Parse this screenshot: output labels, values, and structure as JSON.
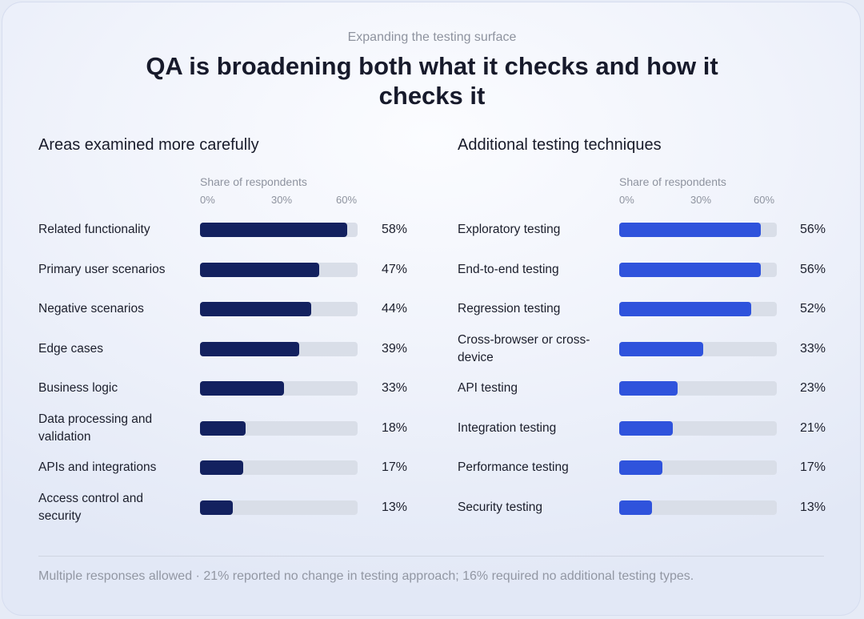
{
  "header": {
    "subtitle": "Expanding the testing surface",
    "title": "QA is broadening both what it checks and how it checks it"
  },
  "colors": {
    "left_bar": "#13215f",
    "right_bar": "#2f53dc",
    "track": "#d9dee8"
  },
  "chart_data": [
    {
      "type": "bar",
      "orientation": "horizontal",
      "title": "Areas examined more carefully",
      "axis_label": "Share of respondents",
      "ticks": [
        "0%",
        "30%",
        "60%"
      ],
      "xlim": [
        0,
        60
      ],
      "unit": "%",
      "categories": [
        "Related functionality",
        "Primary user scenarios",
        "Negative scenarios",
        "Edge cases",
        "Business logic",
        "Data processing and validation",
        "APIs and integrations",
        "Access control and security"
      ],
      "values": [
        58,
        47,
        44,
        39,
        33,
        18,
        17,
        13
      ],
      "value_labels": [
        "58%",
        "47%",
        "44%",
        "39%",
        "33%",
        "18%",
        "17%",
        "13%"
      ]
    },
    {
      "type": "bar",
      "orientation": "horizontal",
      "title": "Additional testing techniques",
      "axis_label": "Share of respondents",
      "ticks": [
        "0%",
        "30%",
        "60%"
      ],
      "xlim": [
        0,
        60
      ],
      "unit": "%",
      "categories": [
        "Exploratory testing",
        "End-to-end testing",
        "Regression testing",
        "Cross-browser or cross-device",
        "API testing",
        "Integration testing",
        "Performance testing",
        "Security testing"
      ],
      "values": [
        56,
        56,
        52,
        33,
        23,
        21,
        17,
        13
      ],
      "value_labels": [
        "56%",
        "56%",
        "52%",
        "33%",
        "23%",
        "21%",
        "17%",
        "13%"
      ]
    }
  ],
  "footnote": "Multiple responses allowed · 21% reported no change in testing approach; 16% required no additional testing types."
}
